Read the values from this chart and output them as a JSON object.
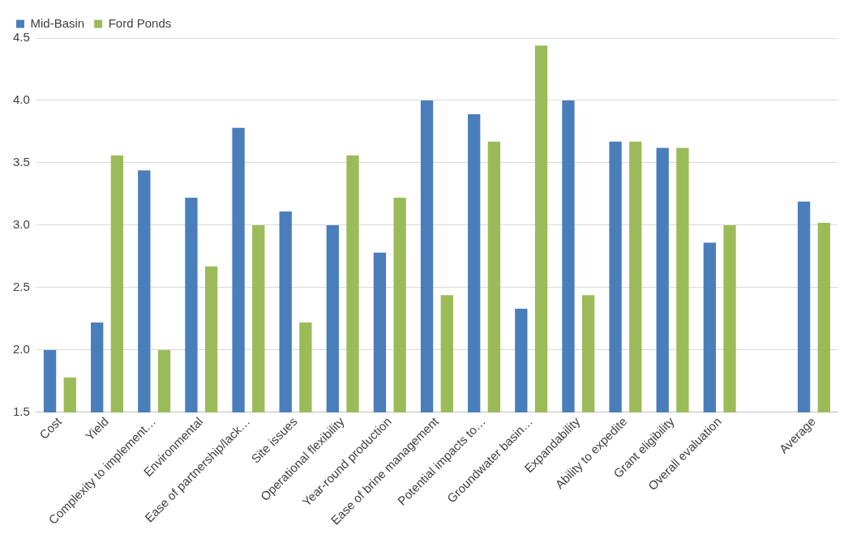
{
  "chart_data": {
    "type": "bar",
    "categories": [
      "Cost",
      "Yield",
      "Complexity to implement…",
      "Environmental",
      "Ease of partnership/lack…",
      "Site issues",
      "Operational flexibility",
      "Year-round production",
      "Ease of brine management",
      "Potential impacts to…",
      "Groundwater basin…",
      "Expandability",
      "Ability to expedite",
      "Grant eligibility",
      "Overall evaluation",
      null,
      "Average"
    ],
    "series": [
      {
        "name": "Mid-Basin",
        "color": "#4a7ebb",
        "values": [
          2.0,
          2.22,
          3.44,
          3.22,
          3.78,
          3.11,
          3.0,
          2.78,
          4.0,
          3.89,
          2.33,
          4.0,
          3.67,
          3.62,
          2.86,
          null,
          3.19
        ]
      },
      {
        "name": "Ford Ponds",
        "color": "#9bbb59",
        "values": [
          1.78,
          3.56,
          2.0,
          2.67,
          3.0,
          2.22,
          3.56,
          3.22,
          2.44,
          3.67,
          4.44,
          2.44,
          3.67,
          3.62,
          3.0,
          null,
          3.02
        ]
      }
    ],
    "ylim": [
      1.5,
      4.5
    ],
    "yticks": [
      {
        "value": 1.5,
        "label": "1.5"
      },
      {
        "value": 2,
        "label": "2.0"
      },
      {
        "value": 2.5,
        "label": "2.5"
      },
      {
        "value": 3,
        "label": "3.0"
      },
      {
        "value": 3.5,
        "label": "3.5"
      },
      {
        "value": 4,
        "label": "4.0"
      },
      {
        "value": 4.5,
        "label": "4.5"
      }
    ],
    "grid": "y",
    "legend": "top left"
  }
}
